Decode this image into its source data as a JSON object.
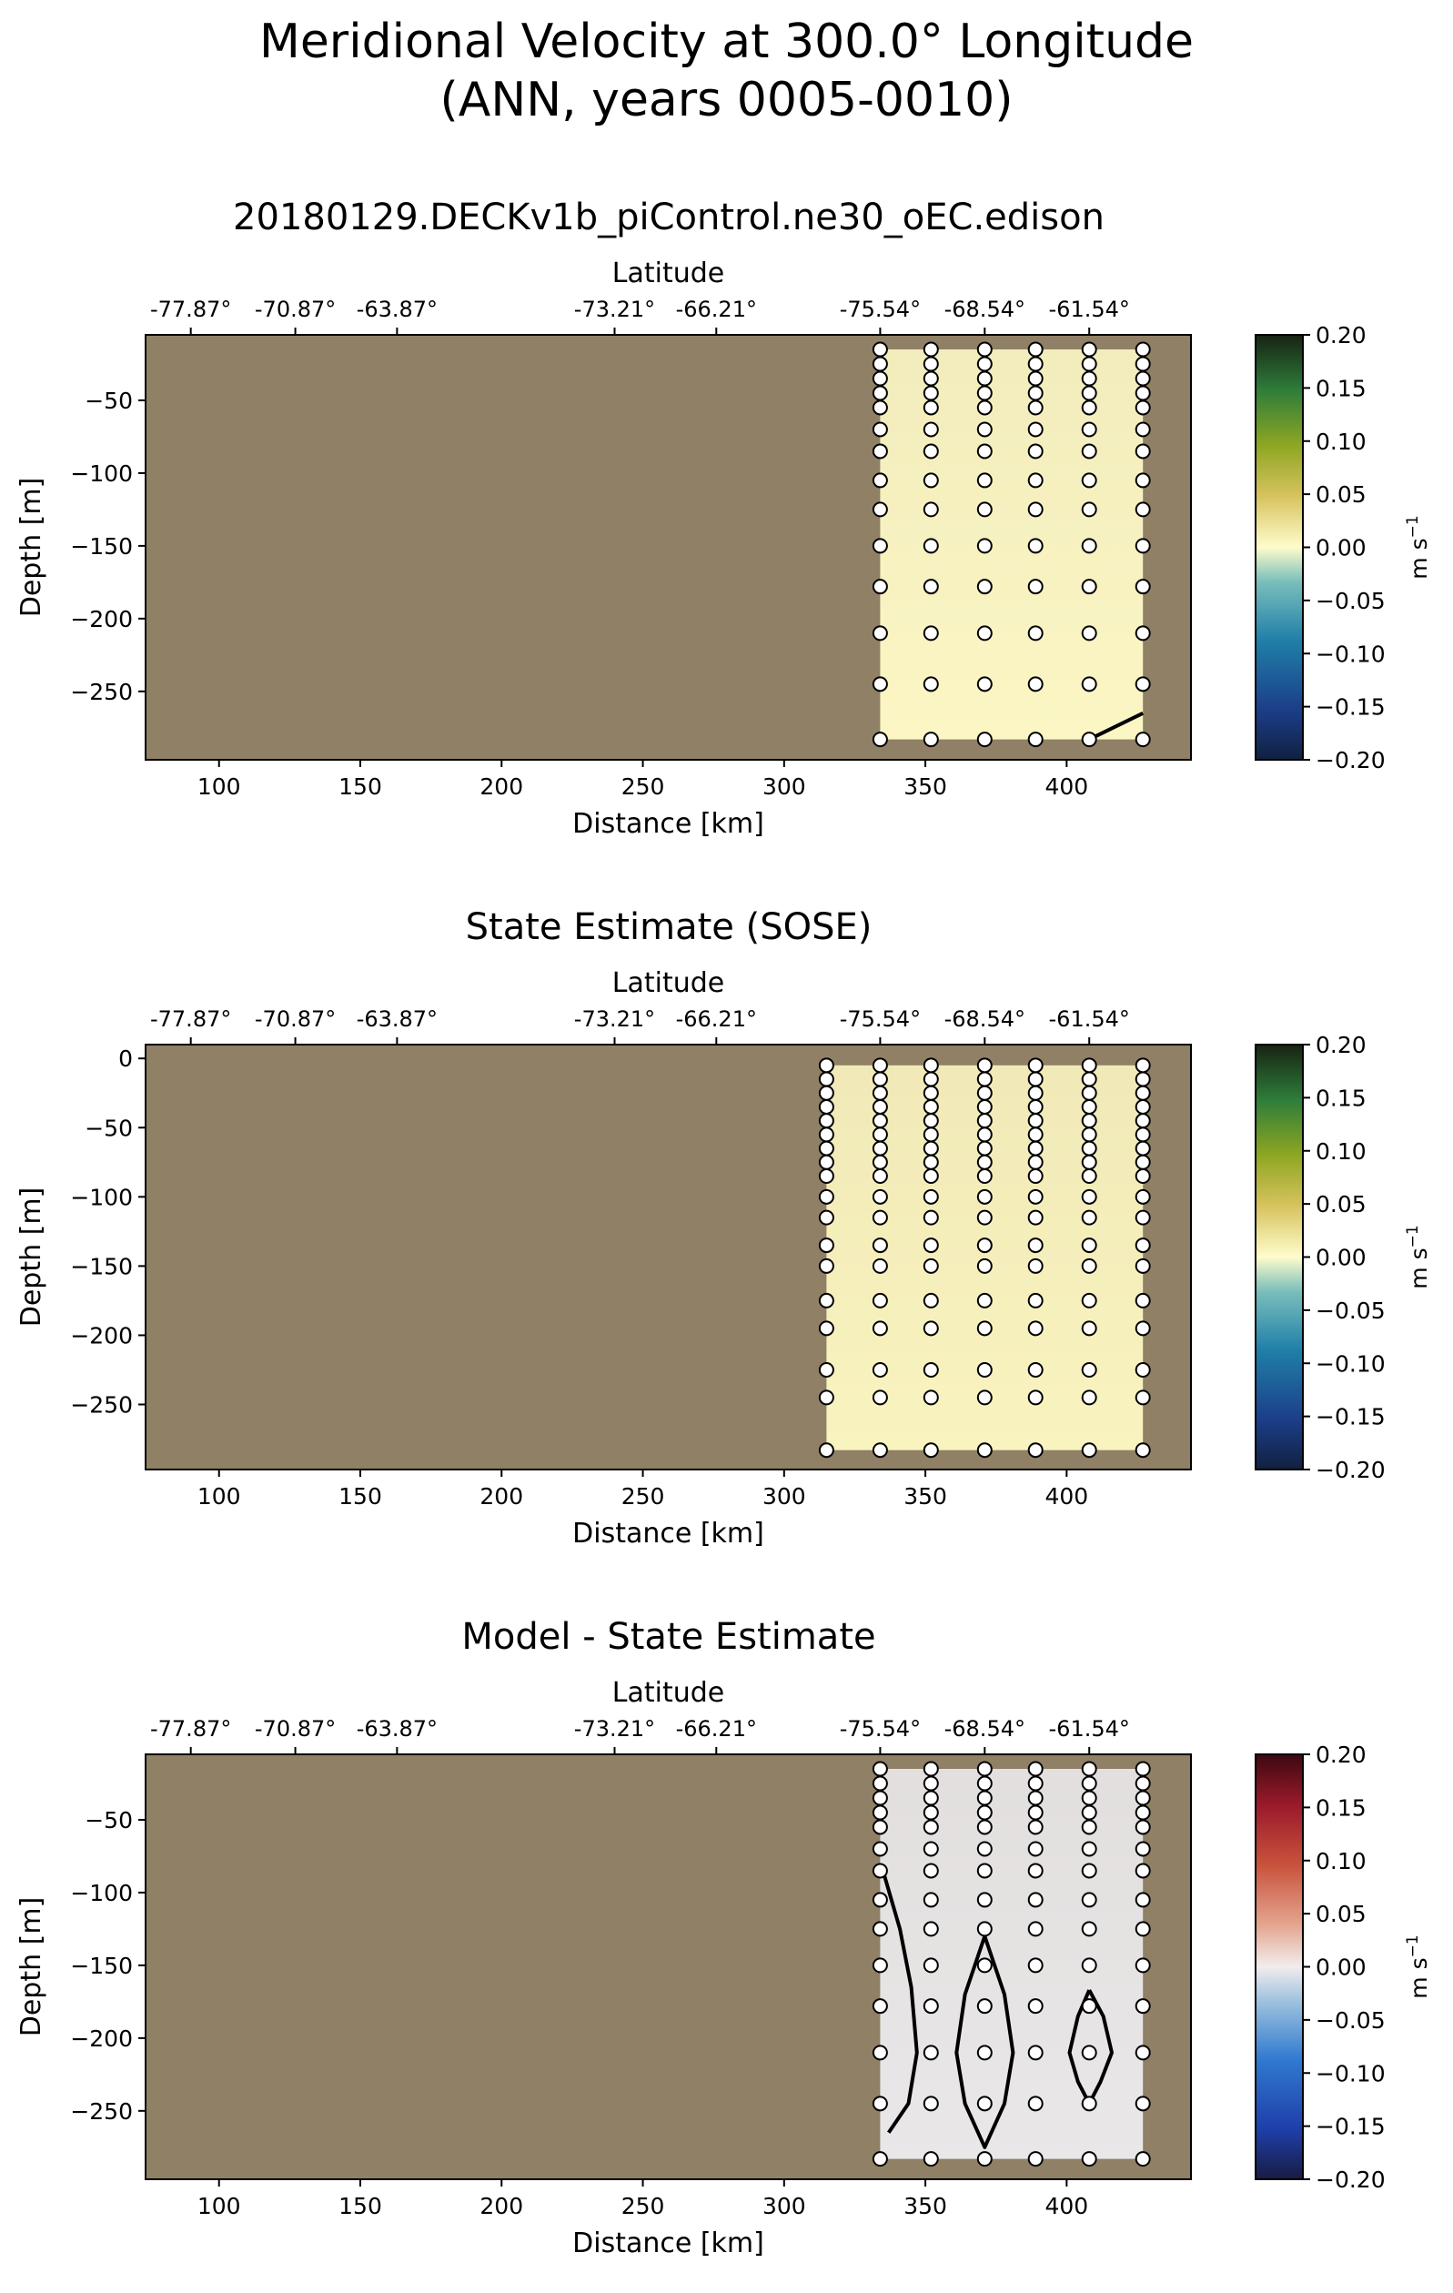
{
  "suptitle_line1": "Meridional Velocity at 300.0° Longitude",
  "suptitle_line2": "(ANN, years 0005-0010)",
  "chart_data": [
    {
      "type": "heatmap",
      "title": "20180129.DECKv1b_piControl.ne30_oEC.edison",
      "xlabel": "Distance [km]",
      "ylabel": "Depth [m]",
      "top_xlabel": "Latitude",
      "xlim": [
        74,
        444
      ],
      "ylim": [
        -297,
        -5
      ],
      "x_ticks": [
        100,
        150,
        200,
        250,
        300,
        350,
        400
      ],
      "y_ticks": [
        -50,
        -100,
        -150,
        -200,
        -250
      ],
      "top_ticks": [
        {
          "x": 90,
          "label": "-77.87°"
        },
        {
          "x": 127,
          "label": "-70.87°"
        },
        {
          "x": 163,
          "label": "-63.87°"
        },
        {
          "x": 240,
          "label": "-73.21°"
        },
        {
          "x": 276,
          "label": "-66.21°"
        },
        {
          "x": 334,
          "label": "-75.54°"
        },
        {
          "x": 371,
          "label": "-68.54°"
        },
        {
          "x": 408,
          "label": "-61.54°"
        }
      ],
      "colorbar": {
        "label": "m s",
        "label_sup": "−1",
        "ticks": [
          "0.20",
          "0.15",
          "0.10",
          "0.05",
          "0.00",
          "−0.05",
          "−0.10",
          "−0.15",
          "−0.20"
        ],
        "colormap": "delta"
      },
      "land_color": "#8f8066",
      "data_region": {
        "x": [
          334,
          427
        ],
        "y": [
          -283,
          -15
        ]
      },
      "field_color": "#fbf6c4",
      "station_x": [
        334,
        352,
        371,
        389,
        408,
        427
      ],
      "depth_levels": [
        -15,
        -25,
        -35,
        -45,
        -55,
        -70,
        -85,
        -105,
        -125,
        -150,
        -178,
        -210,
        -245,
        -283
      ],
      "contours": [
        [
          [
            408,
            -283
          ],
          [
            427,
            -265
          ]
        ]
      ]
    },
    {
      "type": "heatmap",
      "title": "State Estimate (SOSE)",
      "xlabel": "Distance [km]",
      "ylabel": "Depth [m]",
      "top_xlabel": "Latitude",
      "xlim": [
        74,
        444
      ],
      "ylim": [
        -297,
        10
      ],
      "x_ticks": [
        100,
        150,
        200,
        250,
        300,
        350,
        400
      ],
      "y_ticks": [
        0,
        -50,
        -100,
        -150,
        -200,
        -250
      ],
      "top_ticks": [
        {
          "x": 90,
          "label": "-77.87°"
        },
        {
          "x": 127,
          "label": "-70.87°"
        },
        {
          "x": 163,
          "label": "-63.87°"
        },
        {
          "x": 240,
          "label": "-73.21°"
        },
        {
          "x": 276,
          "label": "-66.21°"
        },
        {
          "x": 334,
          "label": "-75.54°"
        },
        {
          "x": 371,
          "label": "-68.54°"
        },
        {
          "x": 408,
          "label": "-61.54°"
        }
      ],
      "colorbar": {
        "label": "m s",
        "label_sup": "−1",
        "ticks": [
          "0.20",
          "0.15",
          "0.10",
          "0.05",
          "0.00",
          "−0.05",
          "−0.10",
          "−0.15",
          "−0.20"
        ],
        "colormap": "delta"
      },
      "land_color": "#8f8066",
      "data_region": {
        "x": [
          315,
          427
        ],
        "y": [
          -283,
          -5
        ]
      },
      "field_color": "#f9f3bf",
      "station_x": [
        315,
        334,
        352,
        371,
        389,
        408,
        427
      ],
      "depth_levels": [
        -5,
        -15,
        -25,
        -35,
        -45,
        -55,
        -65,
        -75,
        -85,
        -100,
        -115,
        -135,
        -150,
        -175,
        -195,
        -225,
        -245,
        -283
      ],
      "contours": []
    },
    {
      "type": "heatmap",
      "title": "Model - State Estimate",
      "xlabel": "Distance [km]",
      "ylabel": "Depth [m]",
      "top_xlabel": "Latitude",
      "xlim": [
        74,
        444
      ],
      "ylim": [
        -297,
        -5
      ],
      "x_ticks": [
        100,
        150,
        200,
        250,
        300,
        350,
        400
      ],
      "y_ticks": [
        -50,
        -100,
        -150,
        -200,
        -250
      ],
      "top_ticks": [
        {
          "x": 90,
          "label": "-77.87°"
        },
        {
          "x": 127,
          "label": "-70.87°"
        },
        {
          "x": 163,
          "label": "-63.87°"
        },
        {
          "x": 240,
          "label": "-73.21°"
        },
        {
          "x": 276,
          "label": "-66.21°"
        },
        {
          "x": 334,
          "label": "-75.54°"
        },
        {
          "x": 371,
          "label": "-68.54°"
        },
        {
          "x": 408,
          "label": "-61.54°"
        }
      ],
      "colorbar": {
        "label": "m s",
        "label_sup": "−1",
        "ticks": [
          "0.20",
          "0.15",
          "0.10",
          "0.05",
          "0.00",
          "−0.05",
          "−0.10",
          "−0.15",
          "−0.20"
        ],
        "colormap": "balance"
      },
      "land_color": "#8f8066",
      "data_region": {
        "x": [
          334,
          427
        ],
        "y": [
          -283,
          -15
        ]
      },
      "field_color": "#e9e7e8",
      "station_x": [
        334,
        352,
        371,
        389,
        408,
        427
      ],
      "depth_levels": [
        -15,
        -25,
        -35,
        -45,
        -55,
        -70,
        -85,
        -105,
        -125,
        -150,
        -178,
        -210,
        -245,
        -283
      ],
      "contours": [
        [
          [
            335,
            -85
          ],
          [
            341,
            -125
          ],
          [
            345,
            -165
          ],
          [
            347,
            -210
          ],
          [
            344,
            -245
          ],
          [
            337,
            -265
          ]
        ],
        [
          [
            371,
            -130
          ],
          [
            378,
            -170
          ],
          [
            381,
            -210
          ],
          [
            378,
            -245
          ],
          [
            371,
            -275
          ],
          [
            364,
            -245
          ],
          [
            361,
            -210
          ],
          [
            364,
            -170
          ],
          [
            371,
            -130
          ]
        ],
        [
          [
            408,
            -167
          ],
          [
            413,
            -185
          ],
          [
            416,
            -210
          ],
          [
            412,
            -230
          ],
          [
            408,
            -245
          ],
          [
            404,
            -230
          ],
          [
            401,
            -210
          ],
          [
            404,
            -185
          ],
          [
            408,
            -167
          ]
        ]
      ]
    }
  ]
}
